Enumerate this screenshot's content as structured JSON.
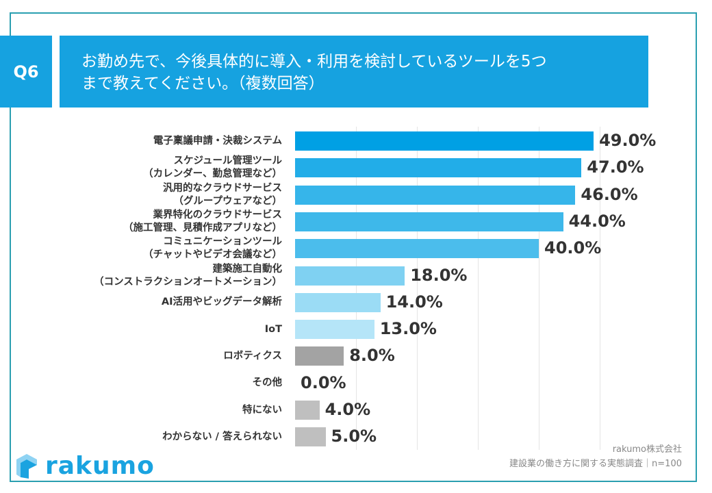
{
  "header": {
    "q": "Q6",
    "title_line1": "お勤め先で、今後具体的に導入・利用を検討しているツールを5つ",
    "title_line2": "まで教えてください。（複数回答）"
  },
  "chart_data": {
    "type": "bar",
    "orientation": "horizontal",
    "categories": [
      "電子稟議申請・決裁システム",
      "スケジュール管理ツール\n（カレンダー、勤怠管理など）",
      "汎用的なクラウドサービス\n（グループウェアなど）",
      "業界特化のクラウドサービス\n（施工管理、見積作成アプリなど）",
      "コミュニケーションツール\n（チャットやビデオ会議など）",
      "建築施工自動化\n（コンストラクションオートメーション）",
      "AI活用やビッグデータ解析",
      "IoT",
      "ロボティクス",
      "その他",
      "特にない",
      "わからない / 答えられない"
    ],
    "values": [
      49.0,
      47.0,
      46.0,
      44.0,
      40.0,
      18.0,
      14.0,
      13.0,
      8.0,
      0.0,
      4.0,
      5.0
    ],
    "labels": [
      "49.0%",
      "47.0%",
      "46.0%",
      "44.0%",
      "40.0%",
      "18.0%",
      "14.0%",
      "13.0%",
      "8.0%",
      "0.0%",
      "4.0%",
      "5.0%"
    ],
    "colors": [
      "#00a0e4",
      "#22ade8",
      "#36b5ea",
      "#3eb8ea",
      "#4bbdec",
      "#7fd1f2",
      "#9bdcf5",
      "#b5e5f8",
      "#a3a3a3",
      "#bfbfbf",
      "#bfbfbf",
      "#bfbfbf"
    ],
    "xlim": [
      0,
      60
    ],
    "grid": true
  },
  "source": {
    "company": "rakumo株式会社",
    "survey": "建設業の働き方に関する実態調査｜n=100"
  },
  "logo": {
    "text": "rakumo"
  }
}
